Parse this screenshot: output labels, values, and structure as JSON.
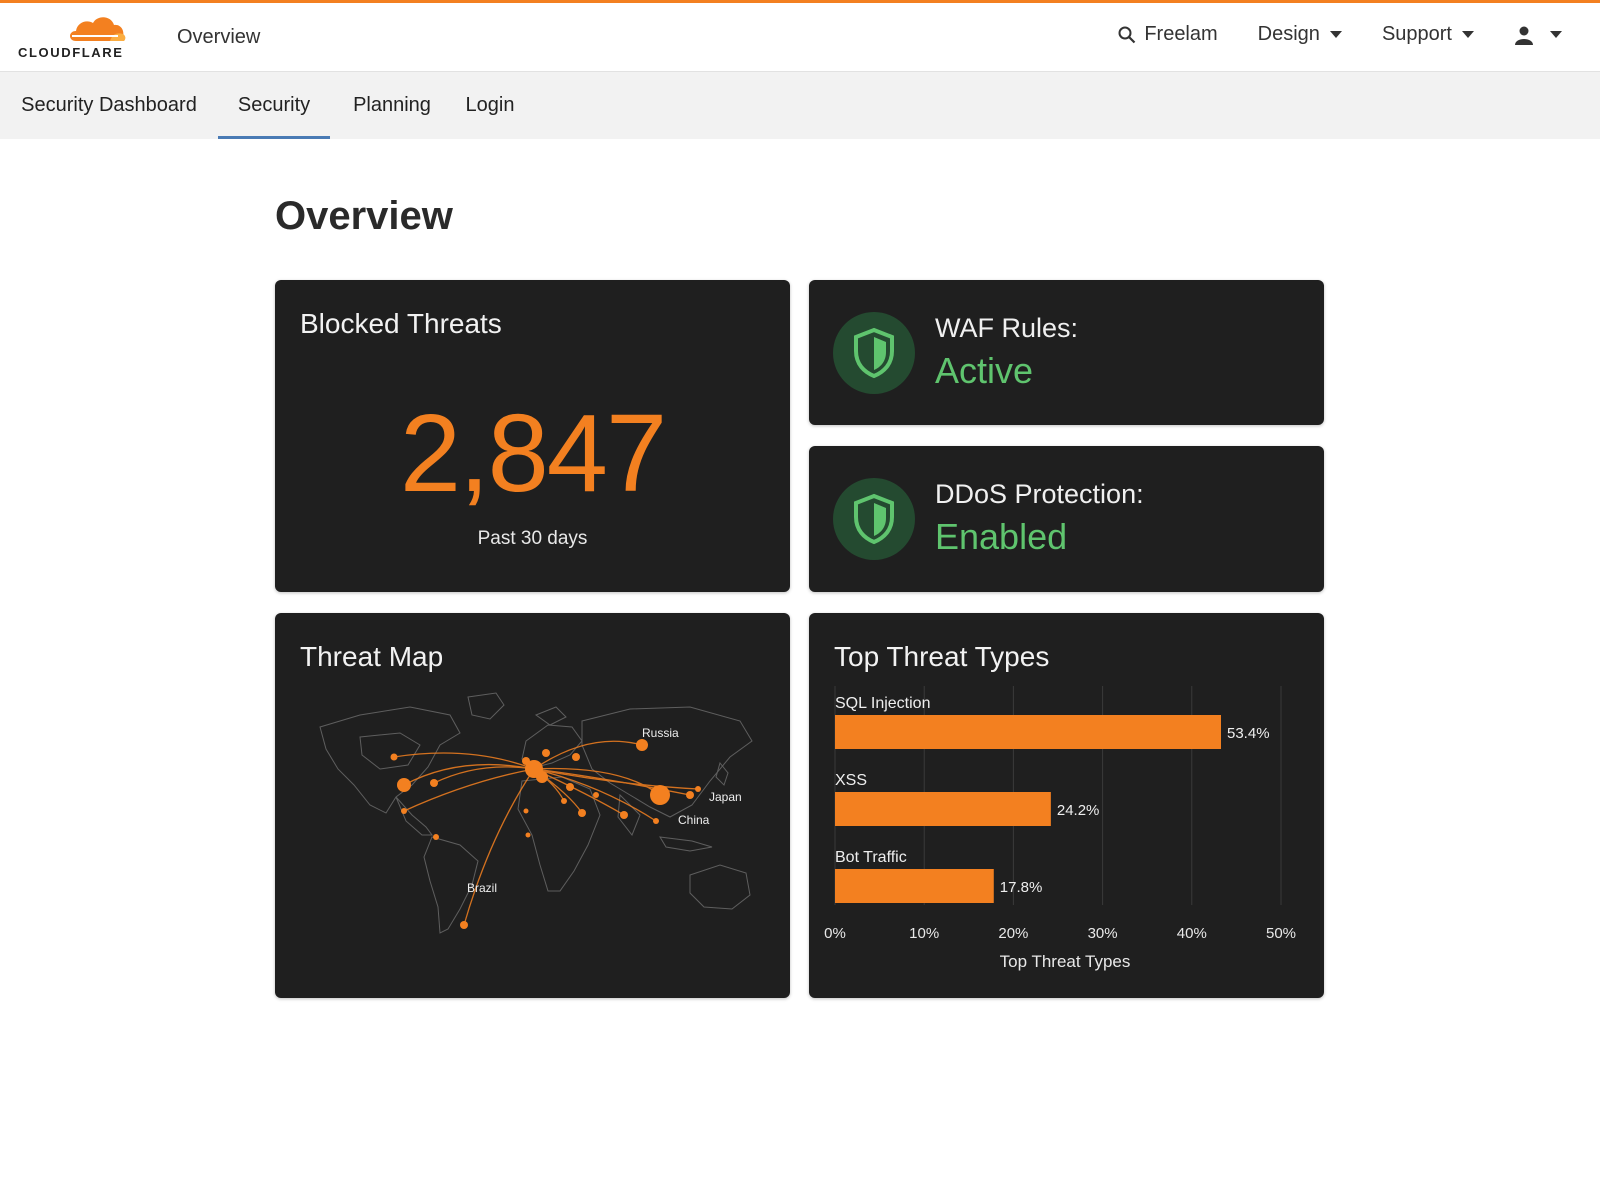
{
  "header": {
    "logo_text": "CLOUDFLARE",
    "page_title": "Overview",
    "search_label": "Freelam",
    "design_label": "Design",
    "support_label": "Support",
    "logo_icon": "cloud-icon",
    "search_icon": "search-icon",
    "user_icon": "user-icon"
  },
  "tabs": [
    {
      "label": "Security Dashboard",
      "active": false
    },
    {
      "label": "Security",
      "active": true
    },
    {
      "label": "Planning",
      "active": false
    },
    {
      "label": "Login",
      "active": false
    }
  ],
  "main": {
    "title": "Overview",
    "blocked": {
      "title": "Blocked Threats",
      "value": "2,847",
      "caption": "Past 30 days"
    },
    "waf": {
      "label": "WAF Rules:",
      "value": "Active",
      "icon": "shield-icon"
    },
    "ddos": {
      "label": "DDoS Protection:",
      "value": "Enabled",
      "icon": "shield-icon"
    },
    "threat_map": {
      "title": "Threat Map",
      "labels": [
        "Russia",
        "Japan",
        "China",
        "Brazil"
      ]
    }
  },
  "colors": {
    "accent": "#f38020",
    "success": "#5fc46e",
    "card": "#1f1f1f",
    "tab_underline": "#4a7bb5"
  },
  "chart_data": {
    "type": "bar",
    "orientation": "horizontal",
    "title": "Top Threat Types",
    "xlabel": "Top Threat Types",
    "categories": [
      "SQL Injection",
      "XSS",
      "Bot Traffic"
    ],
    "values": [
      53.4,
      24.2,
      17.8
    ],
    "value_labels": [
      "53.4%",
      "24.2%",
      "17.8%"
    ],
    "xlim": [
      0,
      50
    ],
    "ticks": [
      "0%",
      "10%",
      "20%",
      "30%",
      "40%",
      "50%"
    ],
    "tick_values": [
      0,
      10,
      20,
      30,
      40,
      50
    ],
    "grid": true
  }
}
